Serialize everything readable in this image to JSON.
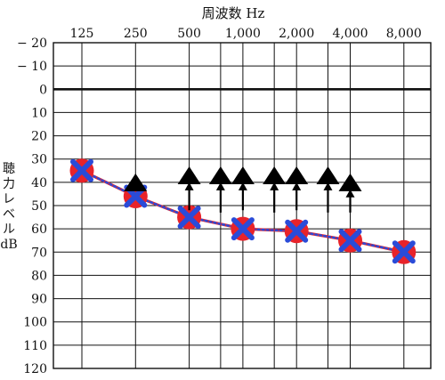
{
  "chart_data": {
    "type": "line",
    "title": "周波数 Hz",
    "xlabel": "周波数 Hz",
    "ylabel": [
      "聴",
      "力",
      "レ",
      "ベ",
      "ル",
      "dB"
    ],
    "x_ticks": [
      "125",
      "250",
      "500",
      "1,000",
      "2,000",
      "4,000",
      "8,000"
    ],
    "y_ticks": [
      "− 20",
      "− 10",
      "0",
      "10",
      "20",
      "30",
      "40",
      "50",
      "60",
      "70",
      "80",
      "90",
      "100",
      "110",
      "120"
    ],
    "y_values": [
      -20,
      -10,
      0,
      10,
      20,
      30,
      40,
      50,
      60,
      70,
      80,
      90,
      100,
      110,
      120
    ],
    "ylim": [
      -20,
      120
    ],
    "y_inverted": true,
    "x_scale": "log2 (octave)",
    "grid": true,
    "series": [
      {
        "marker": "circle",
        "color": "#e8232a",
        "style": "solid",
        "x": [
          125,
          250,
          500,
          1000,
          2000,
          4000,
          8000
        ],
        "y": [
          35,
          46,
          55,
          60,
          61,
          65,
          70
        ]
      },
      {
        "marker": "cross",
        "color": "#2a4bd8",
        "style": "dotted",
        "x": [
          125,
          250,
          500,
          1000,
          2000,
          4000,
          8000
        ],
        "y": [
          35,
          46,
          55,
          60,
          61,
          65,
          70
        ]
      },
      {
        "marker": "triangle",
        "color": "#000000",
        "style": "none",
        "x": [
          250,
          500,
          750,
          1000,
          1500,
          2000,
          3000,
          4000
        ],
        "y": [
          40,
          37,
          37,
          37,
          37,
          37,
          37,
          40
        ]
      }
    ],
    "arrows": {
      "x": [
        500,
        750,
        1000,
        1500,
        2000,
        3000,
        4000
      ],
      "from_y": [
        52,
        53,
        52,
        53,
        52,
        53,
        53
      ],
      "to_y": [
        40,
        40,
        40,
        40,
        40,
        40,
        43
      ]
    }
  }
}
